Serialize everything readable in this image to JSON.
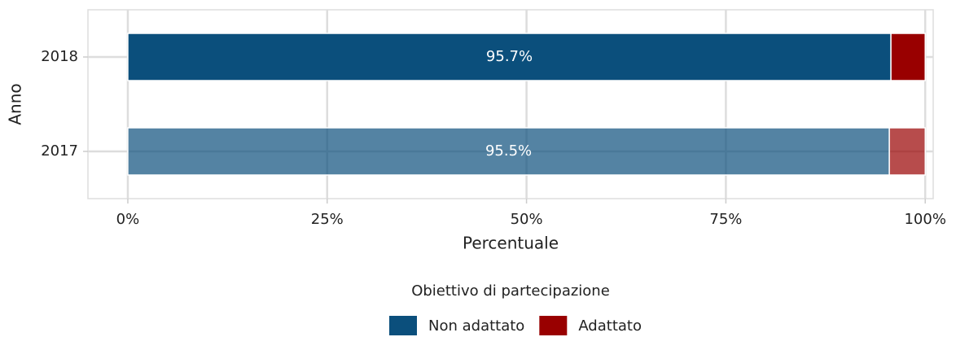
{
  "chart_data": {
    "type": "stacked_barh",
    "categories": [
      "2017",
      "2018"
    ],
    "series": [
      {
        "name": "Non adattato",
        "color": "#0b4f7c",
        "values": [
          95.5,
          95.7
        ],
        "value_labels": [
          "95.5%",
          "95.7%"
        ]
      },
      {
        "name": "Adattato",
        "color": "#990000",
        "values": [
          4.5,
          4.3
        ]
      }
    ],
    "category_opacity": [
      0.7,
      1
    ],
    "xlim": [
      -5,
      101
    ],
    "xticks": [
      {
        "value": 0,
        "label": "0%"
      },
      {
        "value": 25,
        "label": "25%"
      },
      {
        "value": 50,
        "label": "50%"
      },
      {
        "value": 75,
        "label": "75%"
      },
      {
        "value": 100,
        "label": "100%"
      }
    ],
    "x_label": "Percentuale",
    "y_label": "Anno",
    "legend_title": "Obiettivo di partecipazione",
    "legend": "bottom",
    "grid": true
  }
}
